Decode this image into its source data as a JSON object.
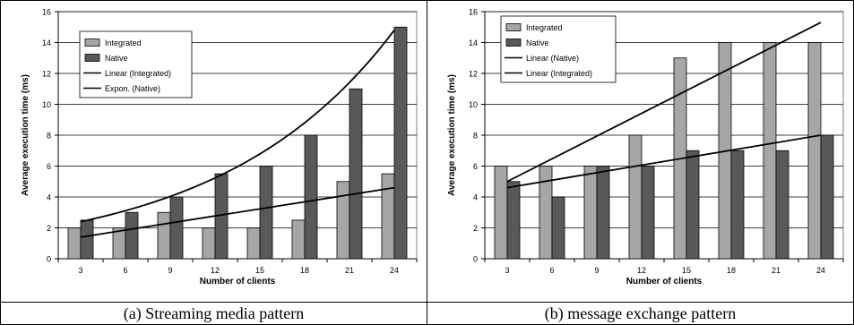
{
  "chart_data": [
    {
      "type": "bar",
      "caption": "(a) Streaming media pattern",
      "xlabel": "Number of clients",
      "ylabel": "Average execution time (ms)",
      "categories": [
        "3",
        "6",
        "9",
        "12",
        "15",
        "18",
        "21",
        "24"
      ],
      "ylim": [
        0,
        16
      ],
      "yticks": [
        0,
        2,
        4,
        6,
        8,
        10,
        12,
        14,
        16
      ],
      "grid": true,
      "legend_position": "top-left",
      "series": [
        {
          "name": "Integrated",
          "color": "#a6a6a6",
          "values": [
            2,
            2,
            3,
            2,
            2,
            2.5,
            5,
            5.5
          ]
        },
        {
          "name": "Native",
          "color": "#595959",
          "values": [
            2.5,
            3,
            4,
            5.5,
            6,
            8,
            11,
            15
          ]
        }
      ],
      "trendlines": [
        {
          "name": "Linear (Integrated)",
          "kind": "linear",
          "color": "#000000",
          "from": [
            1,
            1.4
          ],
          "to": [
            8,
            4.6
          ]
        },
        {
          "name": "Expon. (Native)",
          "kind": "exponential",
          "color": "#000000",
          "from": [
            1,
            2.4
          ],
          "to": [
            8,
            14.8
          ]
        }
      ]
    },
    {
      "type": "bar",
      "caption": "(b) message exchange pattern",
      "xlabel": "Number of clients",
      "ylabel": "Average execution time (ms)",
      "categories": [
        "3",
        "6",
        "9",
        "12",
        "15",
        "18",
        "21",
        "24"
      ],
      "ylim": [
        0,
        16
      ],
      "yticks": [
        0,
        2,
        4,
        6,
        8,
        10,
        12,
        14,
        16
      ],
      "grid": true,
      "legend_position": "top-left",
      "series": [
        {
          "name": "Integrated",
          "color": "#a6a6a6",
          "values": [
            6,
            6,
            6,
            8,
            13,
            14,
            14,
            14
          ]
        },
        {
          "name": "Native",
          "color": "#595959",
          "values": [
            5,
            4,
            6,
            6,
            7,
            7,
            7,
            8
          ]
        }
      ],
      "trendlines": [
        {
          "name": "Linear (Native)",
          "kind": "linear",
          "color": "#000000",
          "from": [
            1,
            4.6
          ],
          "to": [
            8,
            8
          ]
        },
        {
          "name": "Linear (Integrated)",
          "kind": "linear",
          "color": "#000000",
          "from": [
            1,
            5
          ],
          "to": [
            8,
            15.3
          ]
        }
      ],
      "legend_order": [
        "Integrated",
        "Native",
        "Linear (Native)",
        "Linear (Integrated)"
      ]
    }
  ]
}
